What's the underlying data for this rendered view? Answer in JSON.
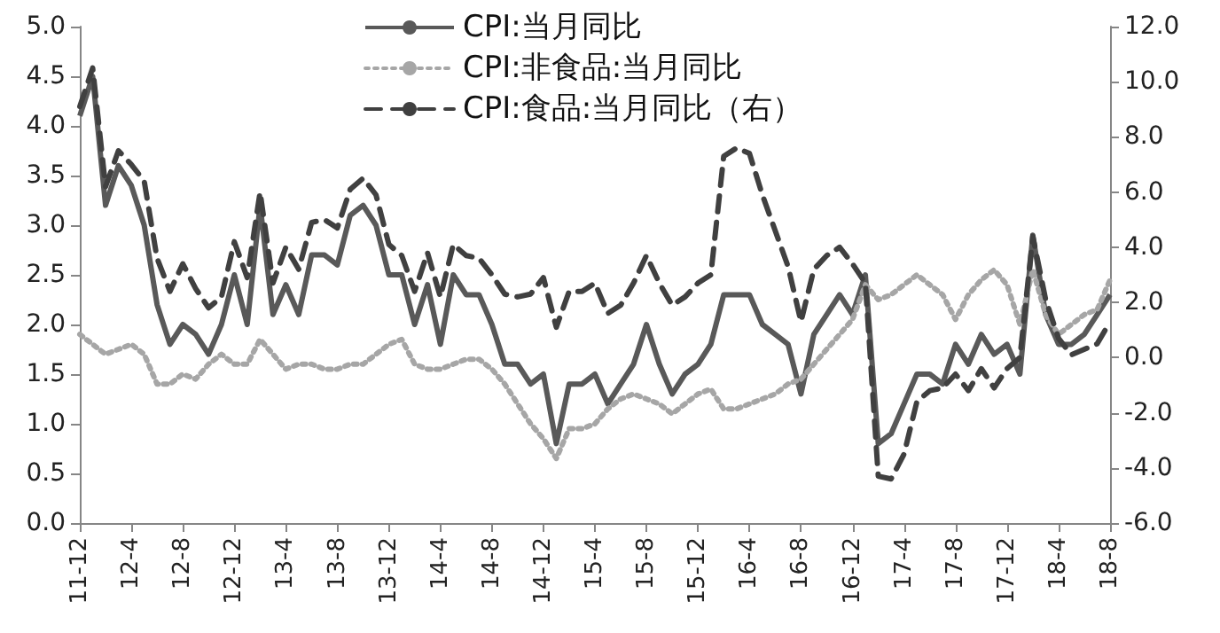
{
  "chart_data": {
    "type": "line",
    "categories": [
      "11-12",
      null,
      null,
      null,
      "12-4",
      null,
      null,
      null,
      "12-8",
      null,
      null,
      null,
      "12-12",
      null,
      null,
      null,
      "13-4",
      null,
      null,
      null,
      "13-8",
      null,
      null,
      null,
      "13-12",
      null,
      null,
      null,
      "14-4",
      null,
      null,
      null,
      "14-8",
      null,
      null,
      null,
      "14-12",
      null,
      null,
      null,
      "15-4",
      null,
      null,
      null,
      "15-8",
      null,
      null,
      null,
      "15-12",
      null,
      null,
      null,
      "16-4",
      null,
      null,
      null,
      "16-8",
      null,
      null,
      null,
      "16-12",
      null,
      null,
      null,
      "17-4",
      null,
      null,
      null,
      "17-8",
      null,
      null,
      null,
      "17-12",
      null,
      null,
      null,
      "18-4",
      null,
      null,
      null,
      "18-8"
    ],
    "series": [
      {
        "name": "CPI:当月同比",
        "color": "#595959",
        "line_style": "solid",
        "values": [
          4.1,
          4.5,
          3.2,
          3.6,
          3.4,
          3.0,
          2.2,
          1.8,
          2.0,
          1.9,
          1.7,
          2.0,
          2.5,
          2.0,
          3.2,
          2.1,
          2.4,
          2.1,
          2.7,
          2.7,
          2.6,
          3.1,
          3.2,
          3.0,
          2.5,
          2.5,
          2.0,
          2.4,
          1.8,
          2.5,
          2.3,
          2.3,
          2.0,
          1.6,
          1.6,
          1.4,
          1.5,
          0.8,
          1.4,
          1.4,
          1.5,
          1.2,
          1.4,
          1.6,
          2.0,
          1.6,
          1.3,
          1.5,
          1.6,
          1.8,
          2.3,
          2.3,
          2.3,
          2.0,
          1.9,
          1.8,
          1.3,
          1.9,
          2.1,
          2.3,
          2.1,
          2.5,
          0.8,
          0.9,
          1.2,
          1.5,
          1.5,
          1.4,
          1.8,
          1.6,
          1.9,
          1.7,
          1.8,
          1.5,
          2.9,
          2.1,
          1.8,
          1.8,
          1.9,
          2.1,
          2.3
        ]
      },
      {
        "name": "CPI:非食品:当月同比",
        "color": "#a6a6a6",
        "line_style": "dotted",
        "values": [
          1.9,
          1.8,
          1.7,
          1.75,
          1.8,
          1.7,
          1.4,
          1.4,
          1.5,
          1.45,
          1.6,
          1.7,
          1.6,
          1.6,
          1.85,
          1.7,
          1.55,
          1.6,
          1.6,
          1.55,
          1.55,
          1.6,
          1.6,
          1.7,
          1.8,
          1.85,
          1.6,
          1.55,
          1.55,
          1.6,
          1.65,
          1.65,
          1.55,
          1.4,
          1.2,
          1.0,
          0.85,
          0.65,
          0.95,
          0.95,
          1.0,
          1.15,
          1.25,
          1.3,
          1.25,
          1.2,
          1.1,
          1.2,
          1.3,
          1.35,
          1.15,
          1.15,
          1.2,
          1.25,
          1.3,
          1.4,
          1.45,
          1.6,
          1.75,
          1.9,
          2.05,
          2.4,
          2.25,
          2.3,
          2.4,
          2.5,
          2.4,
          2.3,
          2.05,
          2.3,
          2.45,
          2.55,
          2.4,
          2.0,
          2.55,
          2.1,
          1.9,
          2.0,
          2.1,
          2.15,
          2.45
        ]
      },
      {
        "name": "CPI:食品:当月同比（右）",
        "color": "#404040",
        "line_style": "dashed",
        "axis": "y2",
        "values": [
          9.1,
          10.5,
          6.2,
          7.5,
          7.0,
          6.4,
          3.6,
          2.4,
          3.4,
          2.5,
          1.8,
          2.2,
          4.2,
          2.9,
          6.0,
          2.7,
          4.0,
          3.2,
          4.9,
          5.0,
          4.7,
          6.1,
          6.5,
          5.9,
          4.1,
          3.7,
          2.4,
          3.8,
          2.2,
          4.1,
          3.7,
          3.6,
          3.0,
          2.3,
          2.2,
          2.3,
          2.9,
          1.1,
          2.4,
          2.4,
          2.7,
          1.6,
          1.9,
          2.7,
          3.7,
          2.7,
          1.9,
          2.2,
          2.7,
          3.0,
          7.3,
          7.6,
          7.4,
          5.9,
          4.6,
          3.3,
          1.3,
          3.2,
          3.7,
          4.0,
          3.4,
          2.7,
          -4.3,
          -4.4,
          -3.5,
          -1.6,
          -1.2,
          -1.1,
          -0.6,
          -1.2,
          -0.4,
          -1.1,
          -0.4,
          0.0,
          4.4,
          2.1,
          0.7,
          0.1,
          0.3,
          0.5,
          1.3
        ]
      }
    ],
    "ylim": [
      0,
      5
    ],
    "yticks": [
      {
        "value": 0,
        "label": "0.0"
      },
      {
        "value": 0.5,
        "label": "0.5"
      },
      {
        "value": 1,
        "label": "1.0"
      },
      {
        "value": 1.5,
        "label": "1.5"
      },
      {
        "value": 2,
        "label": "2.0"
      },
      {
        "value": 2.5,
        "label": "2.5"
      },
      {
        "value": 3,
        "label": "3.0"
      },
      {
        "value": 3.5,
        "label": "3.5"
      },
      {
        "value": 4,
        "label": "4.0"
      },
      {
        "value": 4.5,
        "label": "4.5"
      },
      {
        "value": 5,
        "label": "5.0"
      }
    ],
    "y2lim": [
      -6,
      12
    ],
    "y2ticks": [
      {
        "value": -6,
        "label": "-6.0"
      },
      {
        "value": -4,
        "label": "-4.0"
      },
      {
        "value": -2,
        "label": "-2.0"
      },
      {
        "value": 0,
        "label": "0.0"
      },
      {
        "value": 2,
        "label": "2.0"
      },
      {
        "value": 4,
        "label": "4.0"
      },
      {
        "value": 6,
        "label": "6.0"
      },
      {
        "value": 8,
        "label": "8.0"
      },
      {
        "value": 10,
        "label": "10.0"
      },
      {
        "value": 12,
        "label": "12.0"
      }
    ],
    "grid": false,
    "legend": "top",
    "marker": "none"
  }
}
